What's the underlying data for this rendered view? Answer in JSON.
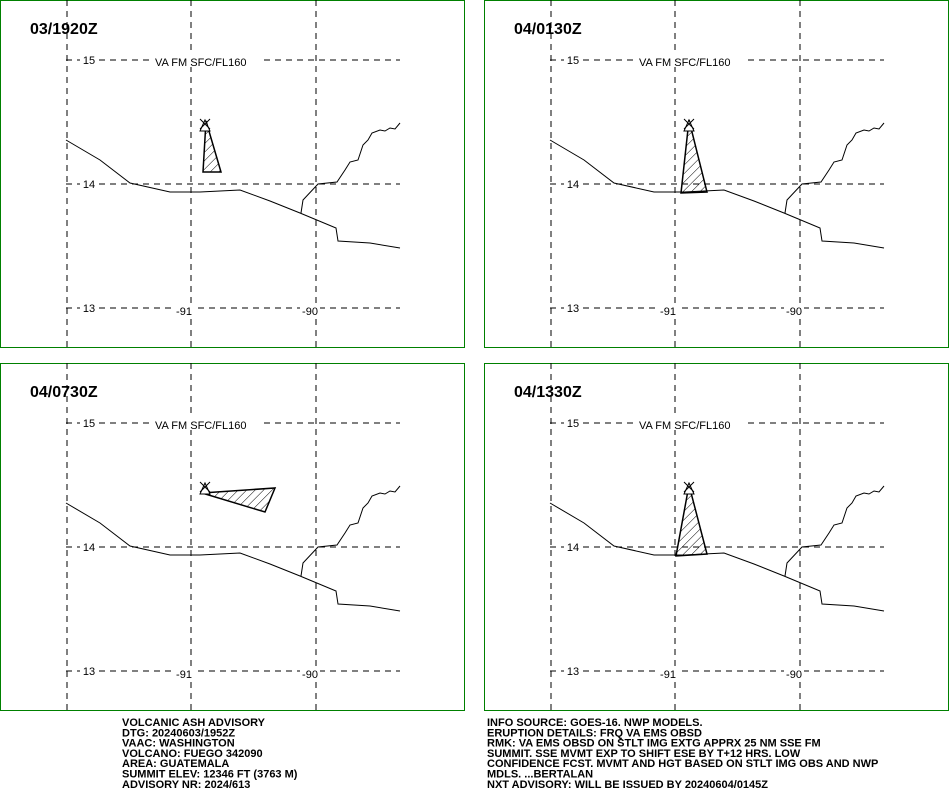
{
  "panels": [
    {
      "time": "03/1920Z",
      "layer": "VA FM SFC/FL160"
    },
    {
      "time": "04/0130Z",
      "layer": "VA FM SFC/FL160"
    },
    {
      "time": "04/0730Z",
      "layer": "VA FM SFC/FL160"
    },
    {
      "time": "04/1330Z",
      "layer": "VA FM SFC/FL160"
    }
  ],
  "grid_labels": {
    "lat": [
      "15",
      "14",
      "13"
    ],
    "lon": [
      "-91",
      "-90"
    ]
  },
  "advisory": {
    "left": [
      "VOLCANIC ASH ADVISORY",
      "DTG: 20240603/1952Z",
      "VAAC: WASHINGTON",
      "VOLCANO: FUEGO 342090",
      "AREA: GUATEMALA",
      "SUMMIT ELEV: 12346 FT (3763 M)",
      "ADVISORY NR: 2024/613"
    ],
    "right": [
      "INFO SOURCE: GOES-16. NWP MODELS.",
      "ERUPTION DETAILS: FRQ VA EMS OBSD",
      "RMK: VA EMS OBSD ON STLT IMG EXTG APPRX 25 NM SSE FM",
      "SUMMIT. SSE MVMT EXP TO SHIFT ESE BY T+12 HRS. LOW",
      "CONFIDENCE FCST. MVMT AND HGT BASED ON STLT IMG OBS AND NWP",
      "MDLS. ...BERTALAN",
      "NXT ADVISORY: WILL BE ISSUED BY 20240604/0145Z"
    ]
  }
}
